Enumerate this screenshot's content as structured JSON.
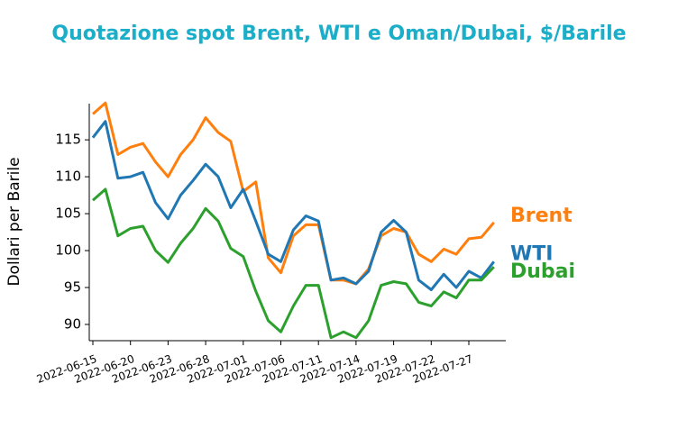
{
  "chart_data": {
    "type": "line",
    "title": "Quotazione spot Brent, WTI e Oman/Dubai, $/Barile",
    "y_label": "Dollari per Barile",
    "categories": [
      "2022-06-15",
      null,
      null,
      "2022-06-20",
      null,
      null,
      "2022-06-23",
      null,
      null,
      "2022-06-28",
      null,
      null,
      "2022-07-01",
      null,
      null,
      "2022-07-06",
      null,
      null,
      "2022-07-11",
      null,
      null,
      "2022-07-14",
      null,
      null,
      "2022-07-19",
      null,
      null,
      "2022-07-22",
      null,
      null,
      "2022-07-27",
      null,
      null
    ],
    "series": [
      {
        "name": "Brent",
        "color": "#ff7f0e",
        "values": [
          118.5,
          120,
          113,
          114,
          114.5,
          112,
          110,
          113,
          115,
          118,
          116,
          114.8,
          108,
          109.3,
          99,
          97,
          102,
          103.5,
          103.5,
          96,
          96,
          95.5,
          97.5,
          102,
          103,
          102.5,
          99.5,
          98.5,
          100.2,
          99.5,
          101.6,
          101.8,
          103.8
        ]
      },
      {
        "name": "WTI",
        "color": "#1f77b4",
        "values": [
          115.3,
          117.5,
          109.8,
          110,
          110.6,
          106.5,
          104.3,
          107.5,
          109.5,
          111.7,
          110,
          105.8,
          108.3,
          104,
          99.5,
          98.5,
          102.8,
          104.7,
          104,
          96,
          96.3,
          95.5,
          97.2,
          102.5,
          104.1,
          102.5,
          96,
          94.7,
          96.8,
          95,
          97.2,
          96.3,
          98.5
        ]
      },
      {
        "name": "Dubai",
        "color": "#2ca02c",
        "values": [
          106.8,
          108.3,
          102,
          103,
          103.3,
          100,
          98.4,
          101,
          103,
          105.7,
          104,
          100.3,
          99.2,
          94.5,
          90.5,
          89,
          92.5,
          95.3,
          95.3,
          88.2,
          89,
          88.2,
          90.5,
          95.3,
          95.8,
          95.5,
          93,
          92.5,
          94.4,
          93.6,
          96,
          96,
          97.8
        ]
      }
    ],
    "ylim": [
      87.8,
      119.9
    ],
    "yticks": [
      90,
      95,
      100,
      105,
      110,
      115
    ]
  }
}
